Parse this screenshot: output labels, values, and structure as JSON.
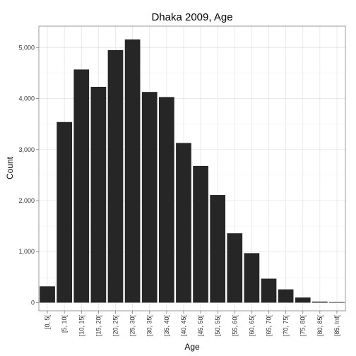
{
  "chart_data": {
    "type": "bar",
    "title": "Dhaka 2009, Age",
    "xlabel": "Age",
    "ylabel": "Count",
    "categories": [
      "[0, 5[",
      "[5, 10[",
      "[10, 15[",
      "[15, 20[",
      "[20, 25[",
      "[25, 30[",
      "[30, 35[",
      "[35, 40[",
      "[40, 45[",
      "[45, 50[",
      "[50, 55[",
      "[55, 60[",
      "[60, 65[",
      "[65, 70[",
      "[70, 75[",
      "[75, 80[",
      "[80, 85[",
      "[85, Inf["
    ],
    "values": [
      320,
      3540,
      4570,
      4230,
      4950,
      5160,
      4130,
      4030,
      3130,
      2680,
      2110,
      1360,
      970,
      470,
      260,
      100,
      20,
      10
    ],
    "ylim": [
      -160,
      5420
    ],
    "yticks": [
      0,
      1000,
      2000,
      3000,
      4000,
      5000
    ],
    "ytick_labels": [
      "0",
      "1,000",
      "2,000",
      "3,000",
      "4,000",
      "5,000"
    ],
    "bar_color": "#262626",
    "grid": true,
    "legend": "none"
  }
}
